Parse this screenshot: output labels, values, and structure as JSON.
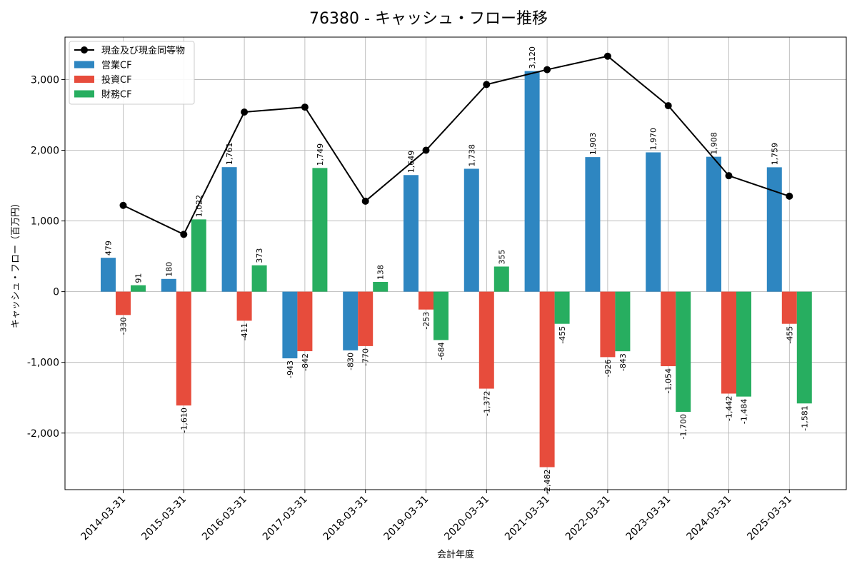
{
  "chart_data": {
    "type": "bar",
    "title": "76380 - キャッシュ・フロー推移",
    "xlabel": "会計年度",
    "ylabel": "キャッシュ・フロー（百万円）",
    "ylim": [
      -2800,
      3600
    ],
    "yticks": [
      -2000,
      -1000,
      0,
      1000,
      2000,
      3000
    ],
    "ytick_labels": [
      "-2,000",
      "-1,000",
      "0",
      "1,000",
      "2,000",
      "3,000"
    ],
    "grid": true,
    "legend_position": "top-left",
    "categories": [
      "2014-03-31",
      "2015-03-31",
      "2016-03-31",
      "2017-03-31",
      "2018-03-31",
      "2019-03-31",
      "2020-03-31",
      "2021-03-31",
      "2022-03-31",
      "2023-03-31",
      "2024-03-31",
      "2025-03-31"
    ],
    "series": [
      {
        "name": "営業CF",
        "kind": "bar",
        "color": "#2e86c1",
        "values": [
          479,
          180,
          1761,
          -943,
          -830,
          1649,
          1738,
          3120,
          1903,
          1970,
          1908,
          1759
        ],
        "labels": [
          "479",
          "180",
          "1,761",
          "-943",
          "-830",
          "1,649",
          "1,738",
          "3,120",
          "1,903",
          "1,970",
          "1,908",
          "1,759"
        ]
      },
      {
        "name": "投資CF",
        "kind": "bar",
        "color": "#e74c3c",
        "values": [
          -330,
          -1610,
          -411,
          -842,
          -770,
          -253,
          -1372,
          -2482,
          -926,
          -1054,
          -1442,
          -455
        ],
        "labels": [
          "-330",
          "-1,610",
          "-411",
          "-842",
          "-770",
          "-253",
          "-1,372",
          "-2,482",
          "-926",
          "-1,054",
          "-1,442",
          "-455"
        ]
      },
      {
        "name": "財務CF",
        "kind": "bar",
        "color": "#27ae60",
        "values": [
          91,
          1022,
          373,
          1749,
          138,
          -684,
          355,
          -455,
          -843,
          -1700,
          -1484,
          -1581
        ],
        "labels": [
          "91",
          "1,022",
          "373",
          "1,749",
          "138",
          "-684",
          "355",
          "-455",
          "-843",
          "-1,700",
          "-1,484",
          "-1,581"
        ]
      },
      {
        "name": "現金及び現金同等物",
        "kind": "line",
        "color": "#000000",
        "values": [
          1220,
          810,
          2540,
          2610,
          1280,
          2000,
          2930,
          3140,
          3330,
          2630,
          1640,
          1350
        ]
      }
    ]
  }
}
